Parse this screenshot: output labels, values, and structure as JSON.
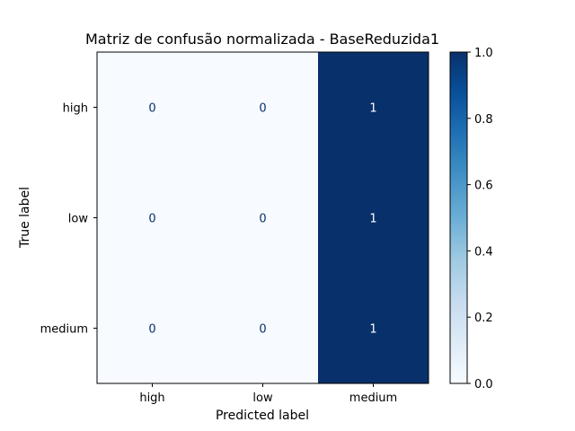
{
  "chart_data": {
    "type": "heatmap",
    "title": "Matriz de confusão normalizada - BaseReduzida1",
    "xlabel": "Predicted label",
    "ylabel": "True label",
    "x_categories": [
      "high",
      "low",
      "medium"
    ],
    "y_categories": [
      "high",
      "low",
      "medium"
    ],
    "values": [
      [
        0,
        0,
        1
      ],
      [
        0,
        0,
        1
      ],
      [
        0,
        0,
        1
      ]
    ],
    "colorbar": {
      "range": [
        0.0,
        1.0
      ],
      "ticks": [
        "0.0",
        "0.2",
        "0.4",
        "0.6",
        "0.8",
        "1.0"
      ]
    },
    "colormap": {
      "low": "#f7fbff",
      "high": "#08306b"
    }
  }
}
